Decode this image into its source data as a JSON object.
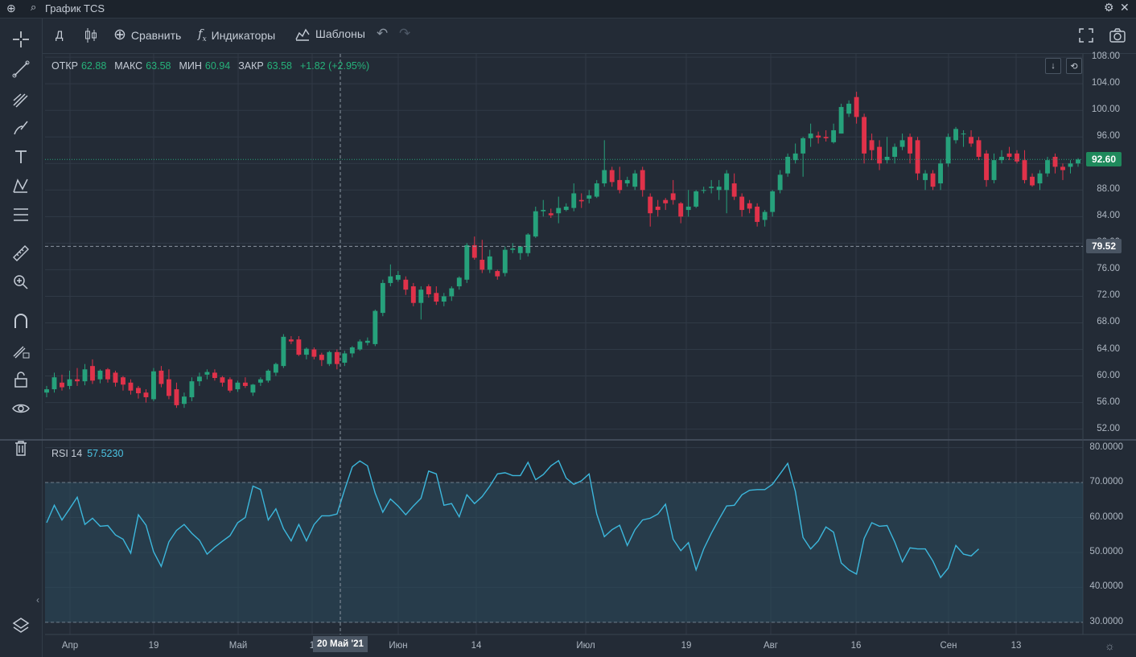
{
  "window": {
    "title": "График TCS"
  },
  "toolbar": {
    "interval": "Д",
    "compare": "Сравнить",
    "indicators": "Индикаторы",
    "templates": "Шаблоны"
  },
  "ohlc": {
    "open_label": "ОТКР",
    "open": "62.88",
    "high_label": "МАКС",
    "high": "63.58",
    "low_label": "МИН",
    "low": "60.94",
    "close_label": "ЗАКР",
    "close": "63.58",
    "change": "+1.82 (+2.95%)"
  },
  "rsi": {
    "label": "RSI 14",
    "value": "57.5230"
  },
  "price_axis": [
    "108.00",
    "104.00",
    "100.00",
    "96.00",
    "92.00",
    "88.00",
    "84.00",
    "80.00",
    "76.00",
    "72.00",
    "68.00",
    "64.00",
    "60.00",
    "56.00",
    "52.00"
  ],
  "rsi_axis": [
    "80.0000",
    "70.0000",
    "60.0000",
    "50.0000",
    "40.0000",
    "30.0000"
  ],
  "last_price_badge": "92.60",
  "crosshair_price_badge": "79.52",
  "crosshair_date": "20 Май '21",
  "time_axis": [
    "Апр",
    "19",
    "Май",
    "1",
    "Июн",
    "14",
    "Июл",
    "19",
    "Авг",
    "16",
    "Сен",
    "13"
  ],
  "colors": {
    "up": "#26a17b",
    "down": "#e0324a",
    "rsi_line": "#3cb7dc",
    "bg": "#232b36"
  },
  "chart_data": {
    "type": "candlestick",
    "ohlc": [
      [
        57.5,
        58.5,
        56.8,
        58.0
      ],
      [
        58.0,
        60.5,
        57.5,
        59.8
      ],
      [
        59.0,
        60.2,
        57.8,
        58.3
      ],
      [
        58.5,
        60.8,
        58.0,
        59.5
      ],
      [
        59.5,
        61.2,
        58.5,
        59.2
      ],
      [
        59.2,
        61.8,
        58.6,
        61.0
      ],
      [
        61.5,
        62.5,
        58.8,
        59.3
      ],
      [
        59.5,
        61.0,
        58.9,
        60.8
      ],
      [
        61.0,
        61.2,
        59.0,
        59.5
      ],
      [
        60.5,
        60.8,
        58.4,
        59.0
      ],
      [
        59.8,
        60.0,
        57.8,
        58.7
      ],
      [
        59.0,
        59.5,
        57.2,
        57.8
      ],
      [
        58.2,
        58.5,
        56.6,
        57.4
      ],
      [
        57.5,
        58.0,
        56.0,
        56.8
      ],
      [
        56.5,
        61.2,
        56.2,
        60.7
      ],
      [
        60.8,
        61.5,
        58.3,
        58.8
      ],
      [
        59.5,
        61.0,
        56.5,
        57.0
      ],
      [
        58.0,
        59.0,
        55.2,
        55.6
      ],
      [
        55.8,
        57.5,
        55.2,
        56.9
      ],
      [
        56.8,
        59.8,
        56.2,
        59.2
      ],
      [
        59.2,
        60.5,
        58.5,
        59.9
      ],
      [
        60.2,
        61.0,
        59.5,
        60.6
      ],
      [
        60.5,
        61.0,
        59.3,
        59.7
      ],
      [
        59.8,
        60.0,
        58.4,
        59.0
      ],
      [
        59.5,
        59.8,
        57.5,
        57.8
      ],
      [
        58.0,
        59.3,
        57.6,
        59.0
      ],
      [
        59.0,
        59.8,
        58.2,
        58.5
      ],
      [
        57.5,
        58.8,
        57.0,
        58.7
      ],
      [
        59.0,
        59.8,
        58.5,
        59.5
      ],
      [
        59.3,
        61.0,
        59.0,
        60.8
      ],
      [
        60.5,
        62.0,
        60.0,
        61.8
      ],
      [
        61.5,
        66.3,
        61.2,
        65.9
      ],
      [
        65.5,
        66.0,
        64.8,
        65.2
      ],
      [
        65.5,
        66.0,
        63.0,
        63.2
      ],
      [
        63.2,
        64.3,
        62.5,
        64.1
      ],
      [
        64.0,
        64.3,
        62.5,
        62.9
      ],
      [
        63.2,
        63.5,
        61.5,
        62.4
      ],
      [
        61.8,
        63.8,
        61.5,
        63.6
      ],
      [
        63.6,
        64.0,
        61.0,
        61.8
      ],
      [
        62.0,
        63.8,
        61.5,
        63.4
      ],
      [
        63.4,
        64.5,
        62.8,
        64.3
      ],
      [
        64.0,
        65.5,
        63.8,
        65.2
      ],
      [
        65.0,
        65.8,
        64.6,
        65.3
      ],
      [
        64.8,
        70.0,
        64.5,
        69.8
      ],
      [
        69.5,
        74.5,
        69.0,
        74.0
      ],
      [
        74.0,
        76.8,
        73.5,
        75.0
      ],
      [
        74.5,
        75.8,
        74.2,
        75.2
      ],
      [
        74.5,
        75.0,
        72.2,
        73.0
      ],
      [
        73.5,
        74.0,
        70.5,
        71.0
      ],
      [
        71.0,
        73.5,
        68.5,
        73.0
      ],
      [
        73.5,
        73.8,
        71.8,
        72.3
      ],
      [
        72.5,
        73.5,
        70.7,
        71.2
      ],
      [
        71.2,
        72.5,
        70.5,
        72.0
      ],
      [
        72.0,
        73.5,
        71.3,
        73.2
      ],
      [
        73.5,
        75.0,
        73.0,
        74.8
      ],
      [
        74.5,
        80.0,
        74.0,
        79.7
      ],
      [
        79.7,
        81.0,
        77.5,
        77.8
      ],
      [
        77.5,
        80.5,
        75.5,
        76.0
      ],
      [
        76.0,
        79.0,
        75.5,
        78.0
      ],
      [
        75.8,
        76.0,
        74.5,
        75.0
      ],
      [
        75.5,
        79.5,
        75.0,
        79.0
      ],
      [
        79.0,
        80.0,
        78.5,
        79.2
      ],
      [
        78.5,
        79.5,
        77.5,
        79.5
      ],
      [
        78.5,
        81.5,
        78.0,
        81.3
      ],
      [
        81.0,
        85.5,
        80.8,
        84.8
      ],
      [
        84.8,
        86.5,
        84.0,
        85.0
      ],
      [
        84.5,
        85.2,
        83.8,
        84.2
      ],
      [
        84.5,
        87.0,
        83.0,
        85.3
      ],
      [
        85.0,
        86.0,
        84.8,
        85.5
      ],
      [
        85.3,
        89.0,
        84.8,
        87.5
      ],
      [
        86.5,
        87.5,
        85.3,
        86.3
      ],
      [
        86.7,
        88.0,
        86.0,
        87.2
      ],
      [
        87.0,
        89.5,
        86.8,
        89.0
      ],
      [
        89.0,
        95.5,
        88.5,
        91.0
      ],
      [
        91.0,
        91.5,
        88.5,
        89.2
      ],
      [
        89.5,
        91.5,
        87.5,
        88.0
      ],
      [
        89.0,
        90.0,
        88.5,
        89.5
      ],
      [
        88.5,
        91.0,
        88.0,
        90.5
      ],
      [
        91.0,
        91.5,
        87.0,
        88.0
      ],
      [
        87.0,
        87.5,
        82.5,
        84.5
      ],
      [
        85.5,
        86.5,
        84.0,
        85.0
      ],
      [
        86.5,
        86.8,
        85.0,
        86.0
      ],
      [
        87.5,
        89.5,
        85.8,
        86.5
      ],
      [
        86.0,
        86.2,
        83.0,
        84.0
      ],
      [
        85.0,
        88.0,
        84.0,
        85.5
      ],
      [
        85.5,
        88.0,
        85.3,
        87.8
      ],
      [
        88.0,
        88.5,
        87.5,
        88.0
      ],
      [
        88.3,
        89.5,
        87.5,
        88.5
      ],
      [
        88.0,
        89.5,
        86.5,
        88.5
      ],
      [
        88.0,
        91.0,
        84.5,
        90.5
      ],
      [
        89.0,
        90.5,
        86.5,
        87.0
      ],
      [
        87.0,
        87.5,
        84.0,
        85.0
      ],
      [
        86.0,
        86.5,
        84.5,
        85.2
      ],
      [
        85.5,
        86.0,
        82.5,
        83.2
      ],
      [
        83.5,
        85.0,
        82.5,
        84.7
      ],
      [
        84.7,
        88.0,
        84.0,
        87.8
      ],
      [
        88.0,
        91.0,
        87.5,
        90.3
      ],
      [
        90.5,
        93.5,
        90.0,
        93.0
      ],
      [
        92.5,
        95.0,
        92.0,
        93.5
      ],
      [
        93.5,
        96.0,
        90.0,
        95.8
      ],
      [
        95.8,
        98.0,
        94.5,
        96.5
      ],
      [
        96.2,
        96.8,
        95.0,
        95.9
      ],
      [
        96.0,
        97.0,
        95.3,
        95.8
      ],
      [
        95.2,
        98.0,
        95.0,
        97.0
      ],
      [
        96.5,
        101.0,
        96.5,
        100.5
      ],
      [
        99.5,
        101.5,
        99.0,
        101.0
      ],
      [
        102.0,
        102.8,
        98.0,
        99.0
      ],
      [
        99.0,
        99.5,
        92.0,
        93.5
      ],
      [
        95.5,
        96.5,
        92.5,
        94.0
      ],
      [
        94.5,
        95.5,
        91.0,
        92.0
      ],
      [
        92.5,
        96.0,
        92.0,
        93.0
      ],
      [
        93.0,
        95.0,
        92.0,
        94.5
      ],
      [
        94.5,
        96.5,
        94.0,
        95.5
      ],
      [
        96.0,
        96.5,
        92.0,
        93.5
      ],
      [
        95.5,
        96.0,
        89.5,
        90.5
      ],
      [
        89.5,
        91.0,
        88.0,
        90.5
      ],
      [
        90.5,
        91.0,
        88.0,
        88.5
      ],
      [
        89.0,
        92.5,
        88.0,
        92.0
      ],
      [
        92.0,
        96.5,
        91.5,
        96.0
      ],
      [
        95.5,
        97.5,
        95.0,
        97.2
      ],
      [
        96.5,
        97.0,
        94.5,
        96.5
      ],
      [
        96.0,
        97.0,
        94.5,
        95.0
      ],
      [
        95.5,
        96.0,
        92.5,
        93.0
      ],
      [
        93.5,
        94.0,
        88.5,
        89.5
      ],
      [
        89.5,
        93.5,
        89.0,
        92.5
      ],
      [
        92.5,
        94.0,
        92.0,
        93.0
      ],
      [
        93.5,
        94.5,
        92.5,
        93.0
      ],
      [
        93.5,
        94.0,
        92.0,
        92.3
      ],
      [
        92.5,
        94.0,
        89.0,
        89.5
      ],
      [
        90.0,
        90.5,
        88.5,
        88.7
      ],
      [
        89.0,
        91.0,
        88.0,
        90.5
      ],
      [
        90.5,
        93.0,
        90.0,
        92.5
      ],
      [
        93.0,
        93.5,
        90.5,
        91.5
      ],
      [
        91.5,
        92.0,
        89.5,
        91.0
      ],
      [
        91.5,
        92.5,
        90.5,
        92.0
      ],
      [
        92.0,
        92.8,
        91.5,
        92.6
      ]
    ],
    "rsi": [
      58.5,
      63.5,
      59.3,
      62.5,
      65.8,
      58.0,
      59.8,
      57.5,
      57.7,
      55.0,
      53.8,
      49.8,
      60.8,
      57.8,
      50.2,
      46.0,
      53.0,
      56.3,
      58.0,
      55.5,
      53.5,
      49.5,
      51.5,
      53.2,
      54.8,
      58.5,
      60.0,
      69.0,
      68.0,
      59.3,
      62.5,
      56.8,
      53.3,
      58.0,
      53.3,
      58.0,
      60.5,
      60.5,
      61.0,
      68.0,
      74.5,
      76.2,
      74.8,
      67.0,
      61.5,
      65.3,
      63.3,
      60.8,
      63.3,
      65.5,
      73.3,
      72.5,
      63.5,
      64.0,
      60.2,
      66.5,
      64.0,
      66.0,
      69.0,
      72.5,
      72.8,
      72.0,
      72.0,
      75.8,
      70.8,
      72.3,
      74.8,
      76.3,
      71.3,
      69.5,
      70.5,
      72.5,
      61.0,
      54.5,
      56.5,
      57.8,
      52.0,
      56.5,
      59.3,
      59.8,
      61.0,
      63.8,
      53.8,
      50.5,
      52.8,
      45.0,
      51.0,
      55.5,
      59.5,
      63.3,
      63.5,
      66.5,
      67.8,
      68.0,
      68.0,
      69.5,
      72.5,
      75.5,
      67.5,
      54.3,
      51.0,
      53.3,
      57.3,
      55.8,
      47.0,
      45.0,
      43.8,
      54.0,
      58.5,
      57.5,
      57.7,
      53.0,
      47.3,
      51.3,
      51.0,
      51.0,
      47.5,
      42.8,
      45.5,
      52.0,
      49.5,
      49.0,
      51.0
    ],
    "y_range": [
      50.5,
      108.5
    ],
    "rsi_range": [
      26.5,
      82.0
    ],
    "rsi_bands": [
      70,
      30
    ]
  }
}
